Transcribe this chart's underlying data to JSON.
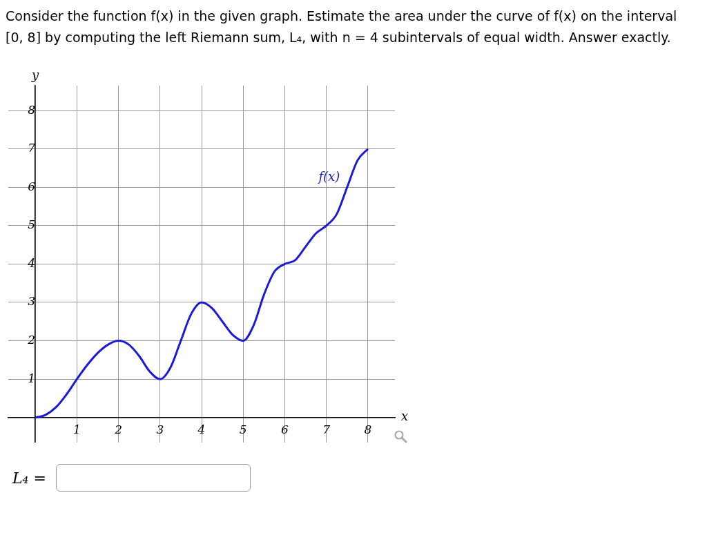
{
  "chart_data": {
    "type": "line",
    "title": "Consider the function f(x) in the given graph. Estimate the area under the curve of f(x) on the interval [0, 8] by computing the left Riemann sum, L₄, with n = 4 subintervals of equal width. Answer exactly.",
    "xlabel": "x",
    "ylabel": "y",
    "x": [
      0,
      0.25,
      0.5,
      0.75,
      1,
      1.25,
      1.5,
      1.75,
      2,
      2.25,
      2.5,
      2.75,
      3,
      3.25,
      3.5,
      3.75,
      4,
      4.25,
      4.5,
      4.75,
      5,
      5.25,
      5.5,
      5.75,
      6,
      6.25,
      6.5,
      6.75,
      7,
      7.25,
      7.5,
      7.75,
      8
    ],
    "series": [
      {
        "name": "f(x)",
        "color": "#1a1adb",
        "values": [
          0,
          0.07,
          0.27,
          0.6,
          1,
          1.37,
          1.68,
          1.9,
          2,
          1.9,
          1.6,
          1.2,
          1,
          1.3,
          2,
          2.7,
          3,
          2.85,
          2.5,
          2.15,
          2,
          2.4,
          3.2,
          3.8,
          4,
          4.1,
          4.45,
          4.8,
          5,
          5.3,
          6,
          6.7,
          7
        ]
      }
    ],
    "xlim": [
      -0.65,
      8.65
    ],
    "ylim": [
      -0.65,
      8.65
    ],
    "xticks": [
      {
        "value": 0,
        "label": null
      },
      1,
      2,
      3,
      4,
      5,
      6,
      7,
      8
    ],
    "yticks": [
      {
        "value": 0,
        "label": null
      },
      1,
      2,
      3,
      4,
      5,
      6,
      7,
      8
    ],
    "annotations": [
      "L₄ ="
    ],
    "grid": true,
    "legend": false,
    "marker": "none",
    "line_style": "solid"
  }
}
